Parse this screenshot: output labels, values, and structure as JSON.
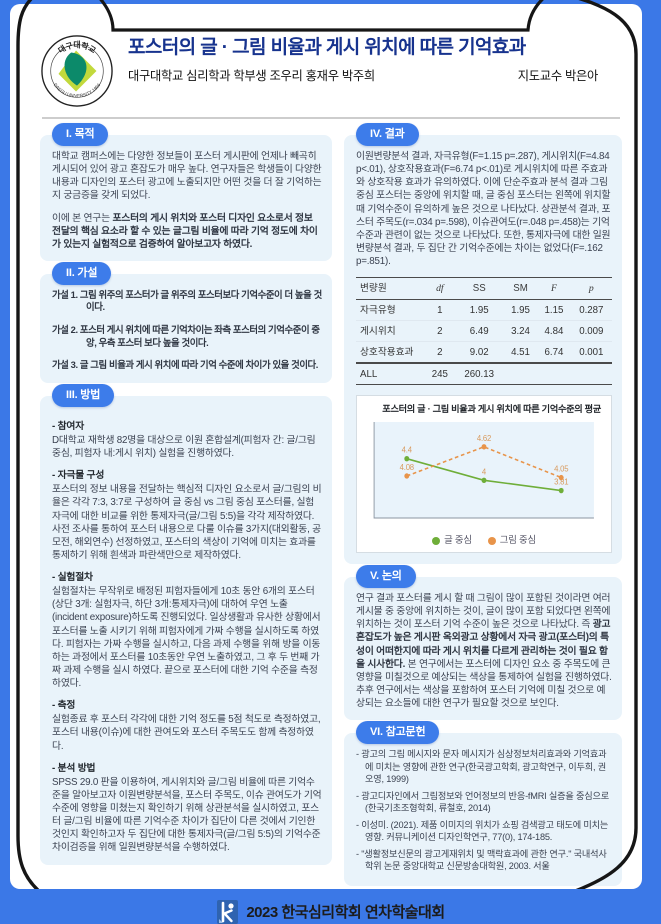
{
  "header": {
    "title": "포스터의 글 · 그림 비율과 게시 위치에 따른 기억효과",
    "authors": "대구대학교 심리학과 학부생 조우리 홍재우 박주희",
    "advisor": "지도교수 박은아",
    "logo_top": "대구대학교",
    "logo_bottom": "DAEGU UNIVERSITY 1956"
  },
  "sections": {
    "purpose": {
      "badge": "I. 목적",
      "p1": "대학교 캠퍼스에는 다양한 정보들이 포스터 게시판에 언제나 빼곡히 게시되어 있어 광고 혼잡도가 매우 높다. 연구자들은 학생들이 다양한 내용과 디자인의 포스터 광고에 노출되지만 어떤 것을 더 잘 기억하는지 궁금증을 갖게 되었다.",
      "p2_prefix": "이에 본 연구는 ",
      "p2_bold": "포스터의 게시 위치와 포스터 디자인 요소로서 정보 전달의 핵심 요소라 할 수 있는 글그림 비율에 따라 기억 정도에 차이가 있는지 실험적으로 검증하여 알아보고자 하였다."
    },
    "hypothesis": {
      "badge": "II. 가설",
      "items": [
        "가설 1. 그림 위주의 포스터가 글 위주의 포스터보다 기억수준이 더 높을 것이다.",
        "가설 2. 포스터 게시 위치에 따른 기억차이는 좌측 포스터의 기억수준이 중앙, 우측 포스터 보다 높을 것이다.",
        "가설 3. 글 그림 비율과 게시 위치에 따라 기억 수준에 차이가 있을 것이다."
      ]
    },
    "method": {
      "badge": "III. 방법",
      "items": [
        {
          "label": "- 참여자",
          "text": "D대학교 재학생 82명을 대상으로 이원 혼합설계(피험자 간: 글/그림 중심, 피험자 내:게시 위치) 실험을 진행하였다."
        },
        {
          "label": "- 자극물 구성",
          "text": "포스터의 정보 내용을 전달하는 핵심적 디자인 요소로서 글/그림의 비율은 각각 7:3, 3:7로 구성하여 글 중심 vs 그림 중심 포스터를, 실험자극에 대한 비교를 위한 통제자극(글/그림 5:5)을 각각 제작하였다. 사전 조사를 통하여 포스터 내용으로 다룰 이슈를 3가지(대외활동, 공모전, 해외연수) 선정하였고, 포스터의 색상이 기억에 미치는 효과를 통제하기 위해 흰색과 파란색만으로 제작하였다."
        },
        {
          "label": "- 실험절차",
          "text": "실험절차는 무작위로 배정된 피험자들에게 10초 동안 6개의 포스터(상단 3개: 실험자극, 하단 3개:통제자극)에 대하여 우연 노출(incident exposure)하도록 진행되었다. 일상생활과 유사한 상황에서 포스터를 노출 시키기 위해 피험자에게 가짜 수행을 실시하도록 하였다. 피험자는 가짜 수행을 실시하고, 다음 과제 수행을 위해 방을 이동하는 과정에서 포스터를 10초동안 우연 노출하였고, 그 후 두 번째 가짜 과제 수행을 실시 하였다. 끝으로 포스터에 대한 기억 수준을 측정하였다."
        },
        {
          "label": "- 측정",
          "text": "실험종료 후 포스터 각각에 대한 기억 정도를 5점 척도로 측정하였고, 포스터 내용(이슈)에 대한 관여도와 포스터 주목도도 함께 측정하였다."
        },
        {
          "label": "- 분석 방법",
          "text": "SPSS 29.0 판을 이용하여, 게시위치와 글/그림 비율에 따른 기억수준을 알아보고자 이원변량분석을, 포스터 주목도, 이슈 관여도가 기억수준에 영향을 미쳤는지 확인하기 위해 상관분석을 실시하였고, 포스터 글/그림 비율에 따른 기억수준 차이가 집단이 다른 것에서 기인한 것인지 확인하고자 두 집단에 대한 통제자극(글/그림 5:5)의 기억수준 차이검증을 위해 일원변량분석을 수행하였다."
        }
      ]
    },
    "results": {
      "badge": "IV. 결과",
      "text": "이원변량분석 결과, 자극유형(F=1.15 p=.287), 게시위치(F=4.84 p<.01), 상호작용효과(F=6.74 p<.01)로 게시위치에 따른 주효과와 상호작용 효과가 유의하였다. 이에 단순주효과 분석 결과 그림중심 포스터는 중앙에 위치할 때, 글 중심 포스터는 왼쪽에 위치할 때 기억수준이 유의하게 높은 것으로 나타났다. 상관분석 결과, 포스터 주목도(r=.034 p=.598), 이슈관여도(r=.048 p=.458)는 기억수준과 관련이 없는 것으로 나타났다. 또한, 통제자극에 대한 일원 변량분석 결과, 두 집단 간 기억수준에는 차이는 없었다(F=.162 p=.851).",
      "table": {
        "headers": [
          "변량원",
          "df",
          "SS",
          "SM",
          "F",
          "p"
        ],
        "rows": [
          [
            "자극유형",
            "1",
            "1.95",
            "1.95",
            "1.15",
            "0.287"
          ],
          [
            "게시위치",
            "2",
            "6.49",
            "3.24",
            "4.84",
            "0.009"
          ],
          [
            "상호작용효과",
            "2",
            "9.02",
            "4.51",
            "6.74",
            "0.001"
          ],
          [
            "ALL",
            "245",
            "260.13",
            "",
            "",
            ""
          ]
        ]
      }
    },
    "discussion": {
      "badge": "V. 논의",
      "p_prefix": "연구 결과 포스터를 게시 할 때 그림이 많이 포함된 것이라면 여러 게시물 중 중앙에 위치하는 것이, 글이 많이 포함 되었다면 왼쪽에 위치하는 것이 포스터 기억 수준이 높은 것으로 나타났다. 즉 ",
      "p_bold": "광고혼잡도가 높은 게시판 옥외광고 상황에서 자극 광고(포스터)의 특성이 어떠한지에 따라 게시 위치를 다르게 관리하는 것이 필요 함을 시사한다.",
      "p_suffix": " 본 연구에서는 포스터에 디자인 요소 중 주목도에 큰 영향을 미칠것으로 예상되는 색상을 통제하여 실험을 진행하였다. 추후 연구에서는 색상을 포함하여 포스터 기억에 미칠 것으로 예상되는 요소들에 대한 연구가 필요할 것으로 보인다."
    },
    "references": {
      "badge": "VI. 참고문헌",
      "items": [
        "- 광고의 그림 메시지와 문자 메시지가 심상정보처리효과와 기억효과에 미치는 영향에 관한 연구(한국광고학회, 광고학연구, 이두희, 권오영, 1999)",
        "- 광고디자인에서 그림정보와 언어정보의 반응-fMRI 실증을 중심으로(한국기초조형학회, 류철호, 2014)",
        "- 이성미. (2021). 제품 이미지의 위치가 쇼핑 검색광고 태도에 미치는 영향. 커뮤니케이션 디자인학연구, 77(0), 174-185.",
        "- \"생활정보신문의 광고게재위치 및 맥락효과에 관한 연구.\" 국내석사학위 논문 중앙대학교 신문방송대학원, 2003. 서울"
      ]
    }
  },
  "chart_data": {
    "type": "line",
    "title": "포스터의 글 · 그림 비율과 게시 위치에 따른 기억수준의 평균",
    "x_positions": [
      1,
      2,
      3
    ],
    "x_tick_labels": [
      "",
      "",
      ""
    ],
    "series": [
      {
        "name": "글 중심",
        "color": "#6fae39",
        "style": "solid",
        "values": [
          4.4,
          4,
          3.81
        ]
      },
      {
        "name": "그림 중심",
        "color": "#e8944a",
        "style": "dashed",
        "values": [
          4.08,
          4.62,
          4.05
        ]
      }
    ],
    "ylim": [
      3.45,
      4.95
    ],
    "label_color": "#d89a5e",
    "grid": false,
    "legend_position": "bottom"
  },
  "footer": {
    "text": "2023 한국심리학회 연차학술대회"
  },
  "colors": {
    "page_edge_blue": "#3b78e7",
    "section_pill_blue": "#3d7cea",
    "panel_bg": "#e9f3fa",
    "title_navy": "#17338e",
    "frame_black": "#161616",
    "series_green": "#6fae39",
    "series_orange": "#e8944a"
  }
}
